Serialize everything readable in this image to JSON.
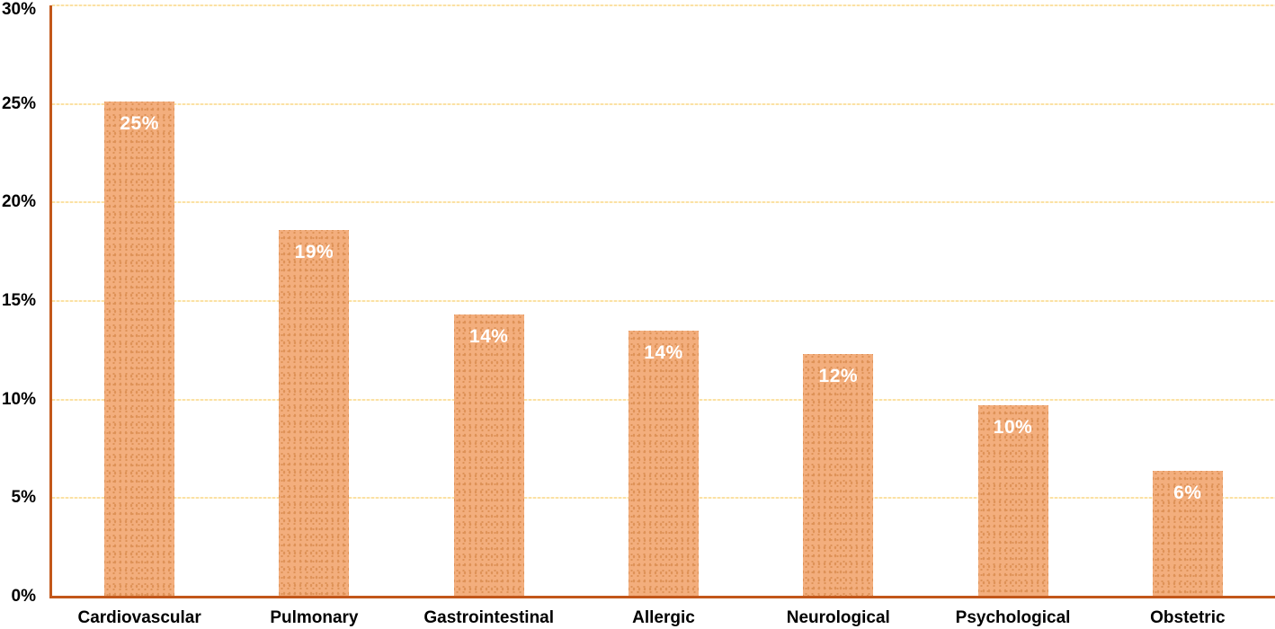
{
  "chart_data": {
    "type": "bar",
    "title": "",
    "xlabel": "",
    "ylabel": "",
    "categories": [
      "Cardiovascular",
      "Pulmonary",
      "Gastrointestinal",
      "Allergic",
      "Neurological",
      "Psychological",
      "Obstetric"
    ],
    "values": [
      25.1,
      18.6,
      14.3,
      13.5,
      12.3,
      9.7,
      6.4
    ],
    "bar_labels": [
      "25%",
      "19%",
      "14%",
      "14%",
      "12%",
      "10%",
      "6%"
    ],
    "ylim": [
      0,
      30
    ],
    "yticks": [
      {
        "value": 0,
        "label": "0%"
      },
      {
        "value": 5,
        "label": "5%"
      },
      {
        "value": 10,
        "label": "10%"
      },
      {
        "value": 15,
        "label": "15%"
      },
      {
        "value": 20,
        "label": "20%"
      },
      {
        "value": 25,
        "label": "25%"
      },
      {
        "value": 30,
        "label": "30%"
      }
    ],
    "grid": true,
    "legend": false,
    "colors": {
      "bar_fill": "#F3AE7D",
      "bar_dot": "#DE9257",
      "axis_line": "#C2571A",
      "gridline": "#FBE1A4",
      "tick_label": "#000000",
      "data_label": "#FFFFFF"
    }
  }
}
